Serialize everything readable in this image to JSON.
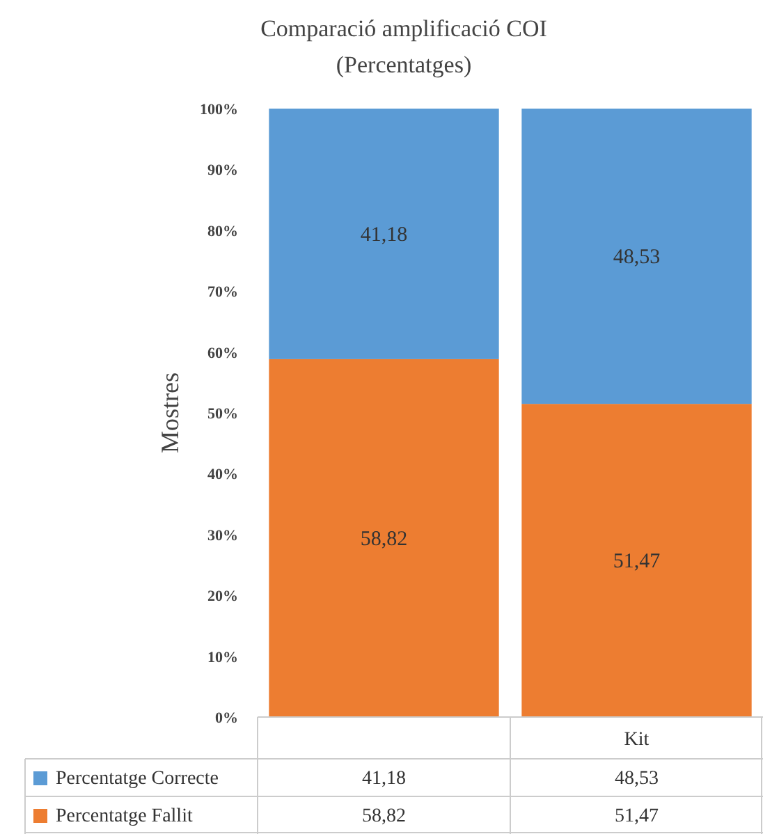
{
  "chart_data": {
    "type": "bar",
    "title": "Comparació amplificació COI",
    "subtitle": "(Percentatges)",
    "ylabel": "Mostres",
    "categories": [
      null,
      "Kit"
    ],
    "stacked": true,
    "legend": "bottom",
    "grid": false,
    "ylim": [
      0,
      100
    ],
    "yticks": [
      {
        "value": 0,
        "label": "0%"
      },
      {
        "value": 10,
        "label": "10%"
      },
      {
        "value": 20,
        "label": "20%"
      },
      {
        "value": 30,
        "label": "30%"
      },
      {
        "value": 40,
        "label": "40%"
      },
      {
        "value": 50,
        "label": "50%"
      },
      {
        "value": 60,
        "label": "60%"
      },
      {
        "value": 70,
        "label": "70%"
      },
      {
        "value": 80,
        "label": "80%"
      },
      {
        "value": 90,
        "label": "90%"
      },
      {
        "value": 100,
        "label": "100%"
      }
    ],
    "series": [
      {
        "name": "Percentatge Fallit",
        "color": "#ed7d31",
        "values": [
          58.82,
          51.47
        ],
        "value_labels": [
          "58,82",
          "51,47"
        ]
      },
      {
        "name": "Percentatge Correcte",
        "color": "#5b9bd5",
        "values": [
          41.18,
          48.53
        ],
        "value_labels": [
          "41,18",
          "48,53"
        ]
      }
    ]
  }
}
